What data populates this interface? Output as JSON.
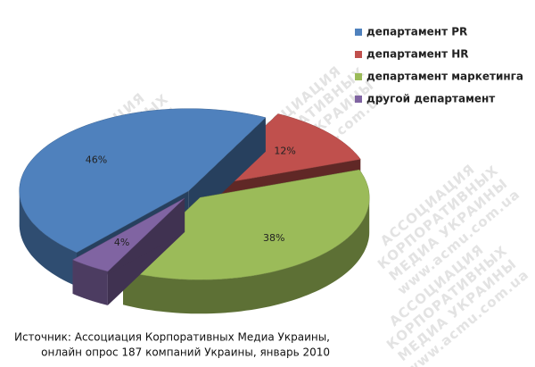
{
  "chart_data": {
    "type": "pie3d",
    "series": [
      {
        "name": "департамент PR",
        "color": "#4f81bd"
      },
      {
        "name": "департамент HR",
        "color": "#c0504d"
      },
      {
        "name": "департамент маркетинга",
        "color": "#9bbb59"
      },
      {
        "name": "другой департамент",
        "color": "#8064a2"
      }
    ],
    "values": [
      46,
      12,
      38,
      4
    ],
    "value_labels": [
      "46%",
      "12%",
      "38%",
      "4%"
    ],
    "legend": "top-right",
    "source": [
      "Источник: Ассоциация Корпоративных Медиа Украины,",
      "онлайн опрос 187 компаний Украины, январь 2010"
    ]
  },
  "watermark": [
    "АССОЦИАЦИЯ",
    "КОРПОРАТИВНЫХ",
    "МЕДИА УКРАИНЫ",
    "www.acmu.com.ua"
  ]
}
